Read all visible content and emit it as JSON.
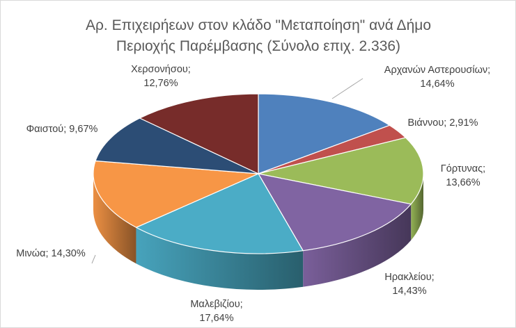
{
  "chart_data": {
    "type": "pie",
    "title_lines": [
      "Αρ. Επιχειρήεων στον κλάδο \"Μεταποίηση\" ανά Δήμο",
      "Περιοχής Παρέμβασης (Σύνολο επιχ. 2.336)"
    ],
    "slices": [
      {
        "name": "Αρχανών Αστερουσίων",
        "value": 14.64,
        "label": "14,64%",
        "color": "#4f81bd"
      },
      {
        "name": "Βιάννου",
        "value": 2.91,
        "label": "2,91%",
        "color": "#c0504d"
      },
      {
        "name": "Γόρτυνας",
        "value": 13.66,
        "label": "13,66%",
        "color": "#9bbb59"
      },
      {
        "name": "Ηρακλείου",
        "value": 14.43,
        "label": "14,43%",
        "color": "#8064a2"
      },
      {
        "name": "Μαλεβιζίου",
        "value": 17.64,
        "label": "17,64%",
        "color": "#4bacc6"
      },
      {
        "name": "Μινώα",
        "value": 14.3,
        "label": "14,30%",
        "color": "#f79646"
      },
      {
        "name": "Φαιστού",
        "value": 9.67,
        "label": "9,67%",
        "color": "#2c4d75"
      },
      {
        "name": "Χερσονήσου",
        "value": 12.76,
        "label": "12,76%",
        "color": "#772c2a"
      }
    ],
    "legend": "none",
    "style": "3d"
  }
}
